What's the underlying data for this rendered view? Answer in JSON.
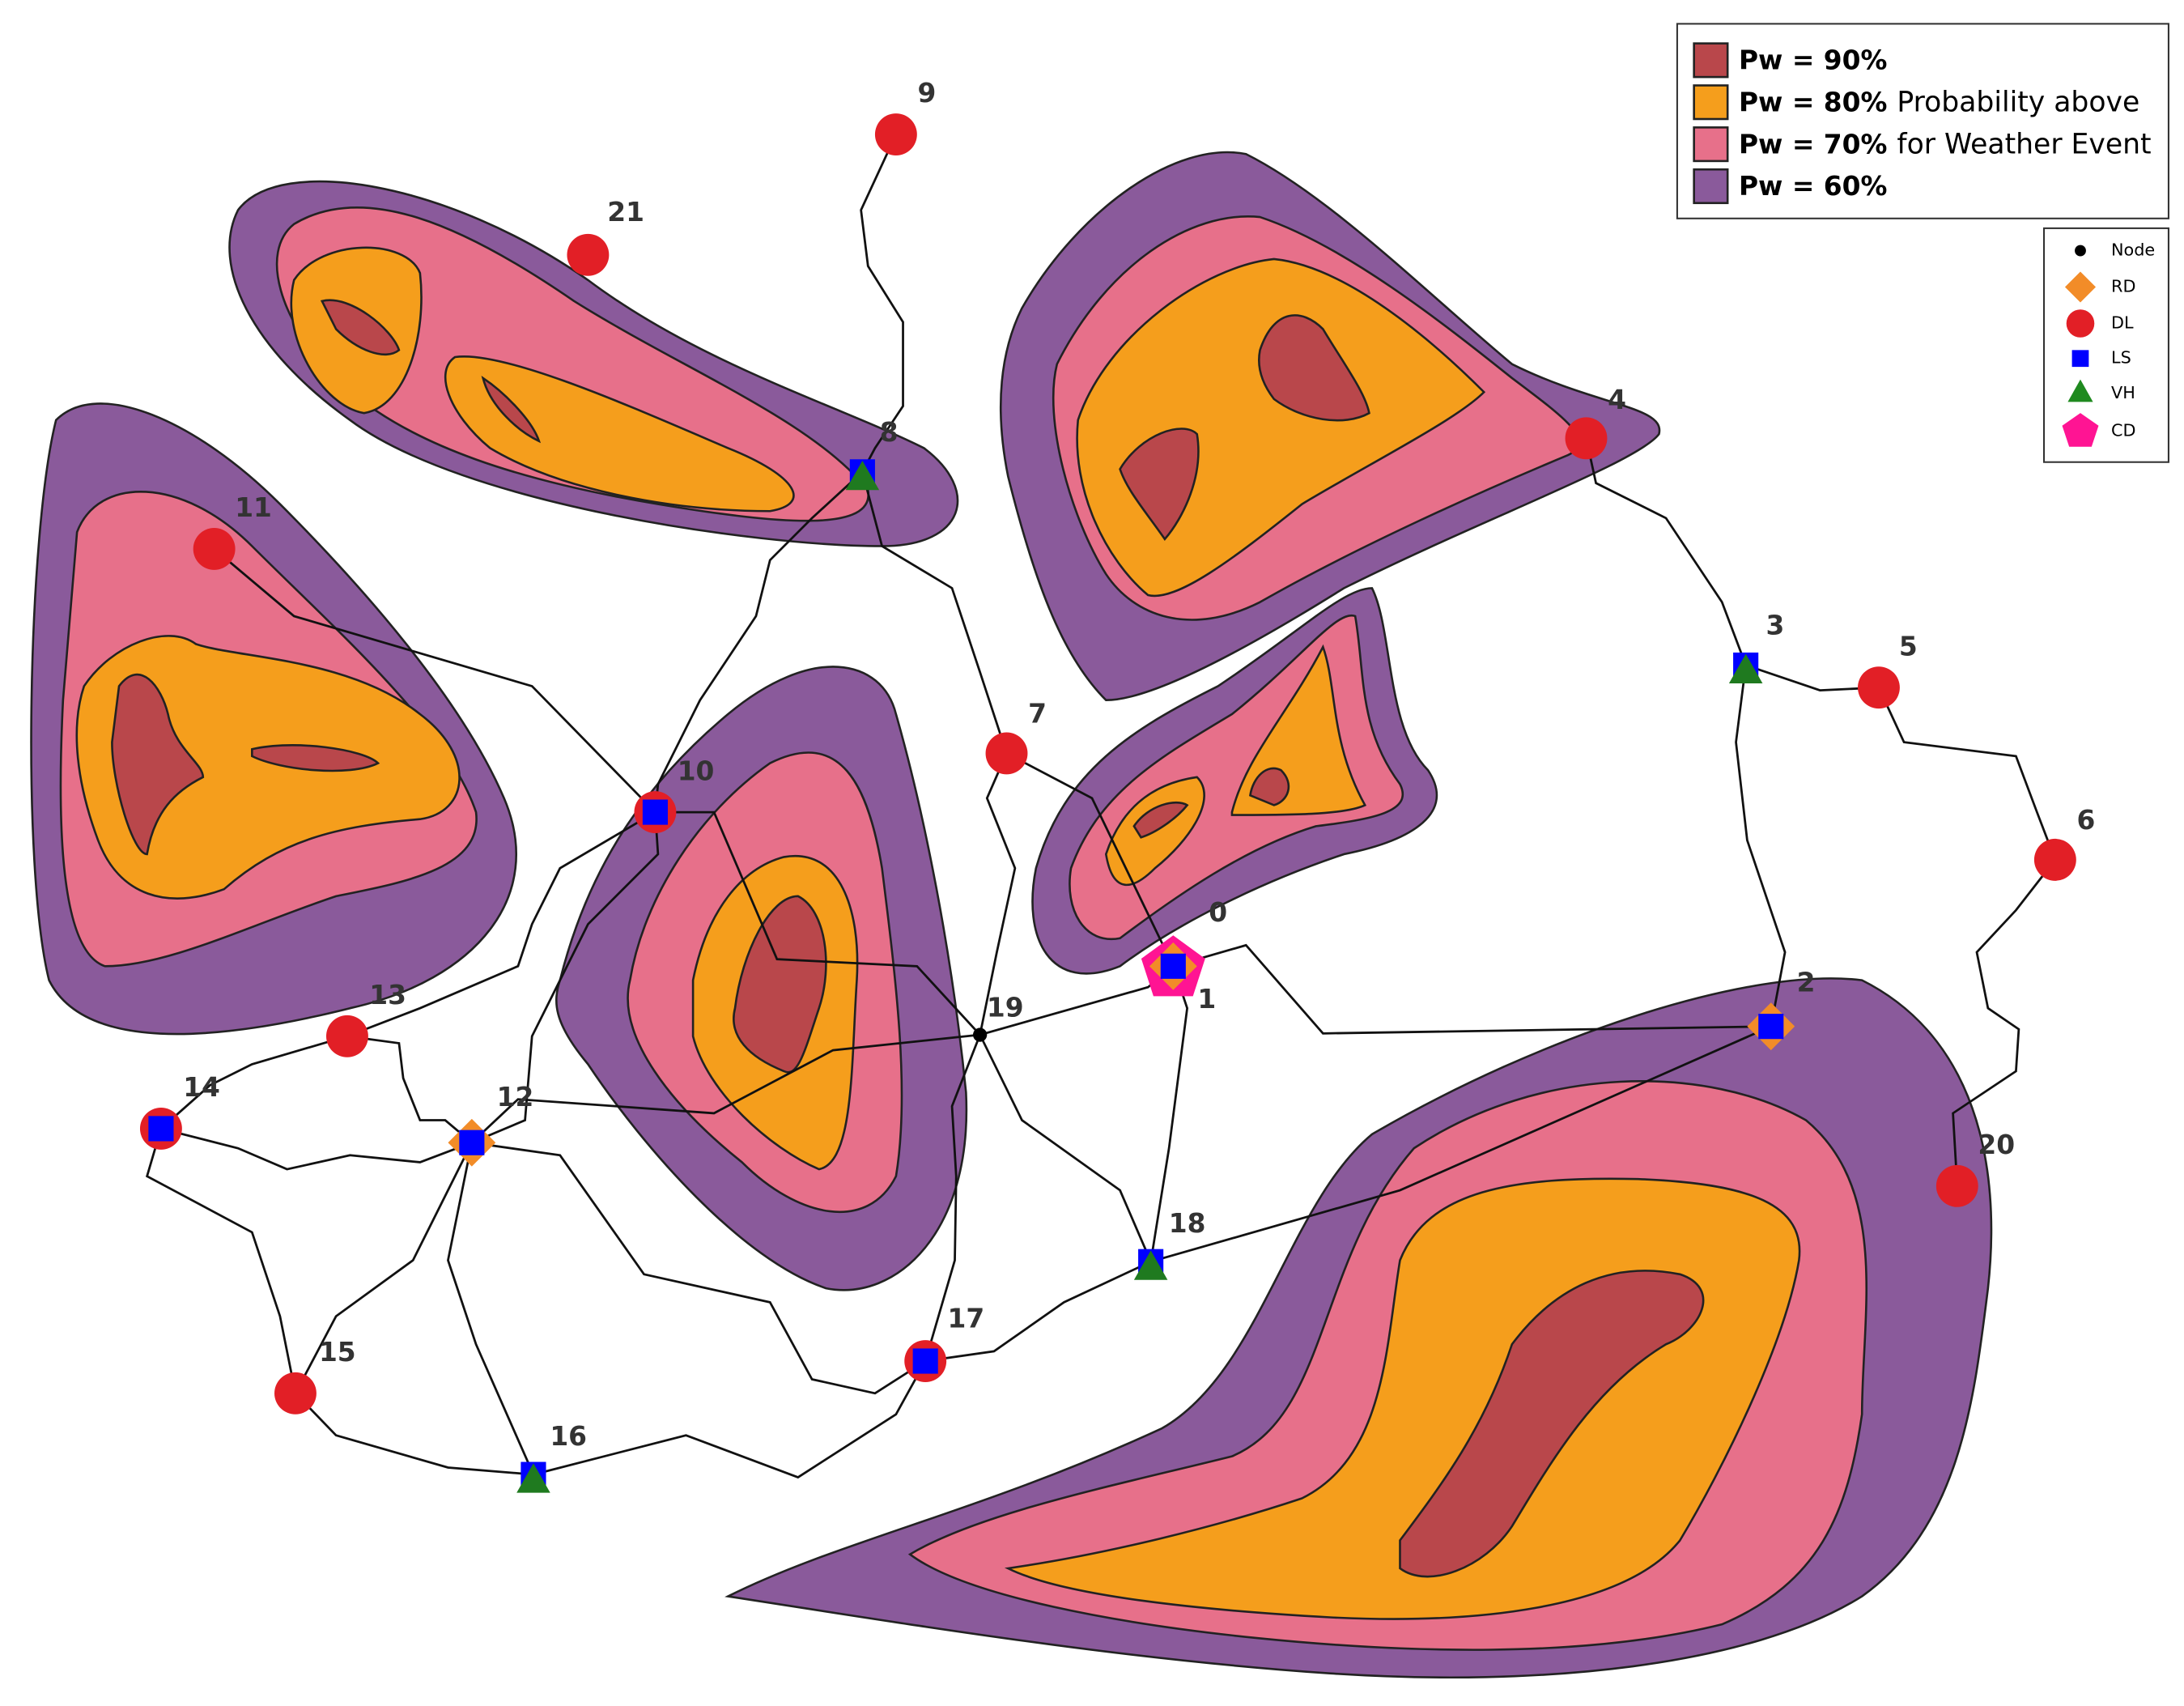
{
  "legend": {
    "weather": {
      "entries": [
        "Pw = 90%",
        "Pw = 80%",
        "Pw = 70%",
        "Pw = 60%"
      ],
      "note": [
        "Probability above",
        "for Weather Event"
      ]
    },
    "symbols": [
      "Node",
      "RD",
      "DL",
      "LS",
      "VH",
      "CD"
    ]
  },
  "nodes": [
    "0",
    "1",
    "2",
    "3",
    "4",
    "5",
    "6",
    "7",
    "8",
    "9",
    "10",
    "11",
    "12",
    "13",
    "14",
    "15",
    "16",
    "17",
    "18",
    "19",
    "20",
    "21"
  ]
}
